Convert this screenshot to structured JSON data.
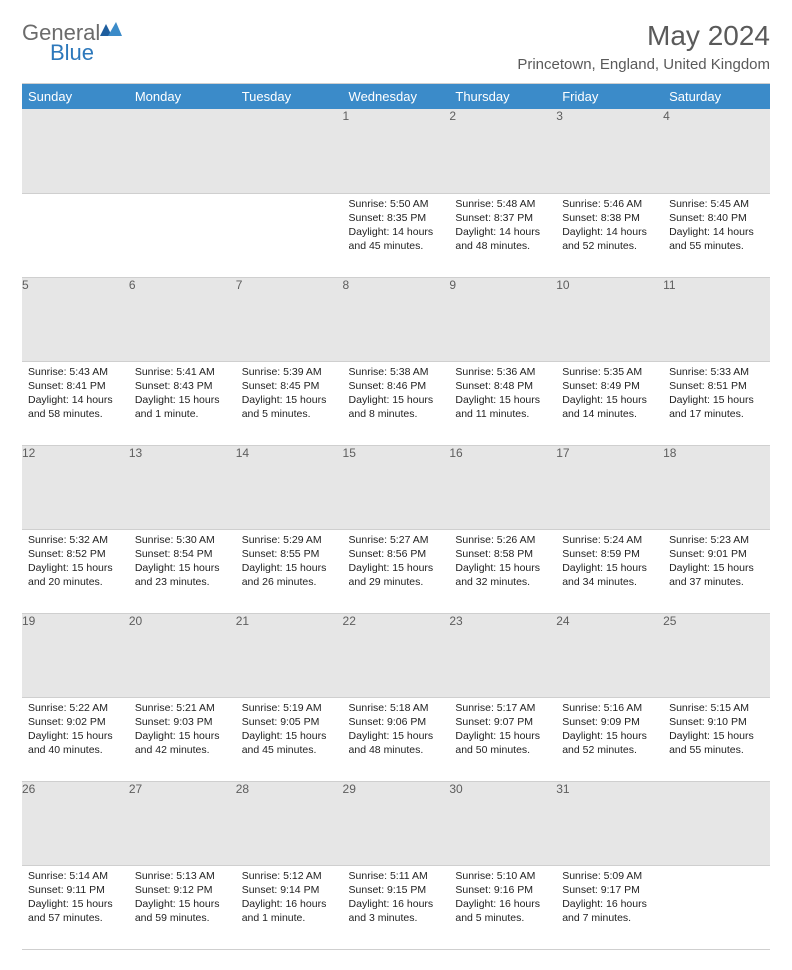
{
  "brand": {
    "part1": "General",
    "part2": "Blue"
  },
  "title": "May 2024",
  "location": "Princetown, England, United Kingdom",
  "header_bg": "#3b8bc9",
  "daynum_bg": "#e6e6e6",
  "day_headers": [
    "Sunday",
    "Monday",
    "Tuesday",
    "Wednesday",
    "Thursday",
    "Friday",
    "Saturday"
  ],
  "weeks": [
    [
      null,
      null,
      null,
      {
        "n": "1",
        "sr": "5:50 AM",
        "ss": "8:35 PM",
        "dl": "14 hours and 45 minutes."
      },
      {
        "n": "2",
        "sr": "5:48 AM",
        "ss": "8:37 PM",
        "dl": "14 hours and 48 minutes."
      },
      {
        "n": "3",
        "sr": "5:46 AM",
        "ss": "8:38 PM",
        "dl": "14 hours and 52 minutes."
      },
      {
        "n": "4",
        "sr": "5:45 AM",
        "ss": "8:40 PM",
        "dl": "14 hours and 55 minutes."
      }
    ],
    [
      {
        "n": "5",
        "sr": "5:43 AM",
        "ss": "8:41 PM",
        "dl": "14 hours and 58 minutes."
      },
      {
        "n": "6",
        "sr": "5:41 AM",
        "ss": "8:43 PM",
        "dl": "15 hours and 1 minute."
      },
      {
        "n": "7",
        "sr": "5:39 AM",
        "ss": "8:45 PM",
        "dl": "15 hours and 5 minutes."
      },
      {
        "n": "8",
        "sr": "5:38 AM",
        "ss": "8:46 PM",
        "dl": "15 hours and 8 minutes."
      },
      {
        "n": "9",
        "sr": "5:36 AM",
        "ss": "8:48 PM",
        "dl": "15 hours and 11 minutes."
      },
      {
        "n": "10",
        "sr": "5:35 AM",
        "ss": "8:49 PM",
        "dl": "15 hours and 14 minutes."
      },
      {
        "n": "11",
        "sr": "5:33 AM",
        "ss": "8:51 PM",
        "dl": "15 hours and 17 minutes."
      }
    ],
    [
      {
        "n": "12",
        "sr": "5:32 AM",
        "ss": "8:52 PM",
        "dl": "15 hours and 20 minutes."
      },
      {
        "n": "13",
        "sr": "5:30 AM",
        "ss": "8:54 PM",
        "dl": "15 hours and 23 minutes."
      },
      {
        "n": "14",
        "sr": "5:29 AM",
        "ss": "8:55 PM",
        "dl": "15 hours and 26 minutes."
      },
      {
        "n": "15",
        "sr": "5:27 AM",
        "ss": "8:56 PM",
        "dl": "15 hours and 29 minutes."
      },
      {
        "n": "16",
        "sr": "5:26 AM",
        "ss": "8:58 PM",
        "dl": "15 hours and 32 minutes."
      },
      {
        "n": "17",
        "sr": "5:24 AM",
        "ss": "8:59 PM",
        "dl": "15 hours and 34 minutes."
      },
      {
        "n": "18",
        "sr": "5:23 AM",
        "ss": "9:01 PM",
        "dl": "15 hours and 37 minutes."
      }
    ],
    [
      {
        "n": "19",
        "sr": "5:22 AM",
        "ss": "9:02 PM",
        "dl": "15 hours and 40 minutes."
      },
      {
        "n": "20",
        "sr": "5:21 AM",
        "ss": "9:03 PM",
        "dl": "15 hours and 42 minutes."
      },
      {
        "n": "21",
        "sr": "5:19 AM",
        "ss": "9:05 PM",
        "dl": "15 hours and 45 minutes."
      },
      {
        "n": "22",
        "sr": "5:18 AM",
        "ss": "9:06 PM",
        "dl": "15 hours and 48 minutes."
      },
      {
        "n": "23",
        "sr": "5:17 AM",
        "ss": "9:07 PM",
        "dl": "15 hours and 50 minutes."
      },
      {
        "n": "24",
        "sr": "5:16 AM",
        "ss": "9:09 PM",
        "dl": "15 hours and 52 minutes."
      },
      {
        "n": "25",
        "sr": "5:15 AM",
        "ss": "9:10 PM",
        "dl": "15 hours and 55 minutes."
      }
    ],
    [
      {
        "n": "26",
        "sr": "5:14 AM",
        "ss": "9:11 PM",
        "dl": "15 hours and 57 minutes."
      },
      {
        "n": "27",
        "sr": "5:13 AM",
        "ss": "9:12 PM",
        "dl": "15 hours and 59 minutes."
      },
      {
        "n": "28",
        "sr": "5:12 AM",
        "ss": "9:14 PM",
        "dl": "16 hours and 1 minute."
      },
      {
        "n": "29",
        "sr": "5:11 AM",
        "ss": "9:15 PM",
        "dl": "16 hours and 3 minutes."
      },
      {
        "n": "30",
        "sr": "5:10 AM",
        "ss": "9:16 PM",
        "dl": "16 hours and 5 minutes."
      },
      {
        "n": "31",
        "sr": "5:09 AM",
        "ss": "9:17 PM",
        "dl": "16 hours and 7 minutes."
      },
      null
    ]
  ],
  "labels": {
    "sunrise": "Sunrise:",
    "sunset": "Sunset:",
    "daylight": "Daylight:"
  }
}
